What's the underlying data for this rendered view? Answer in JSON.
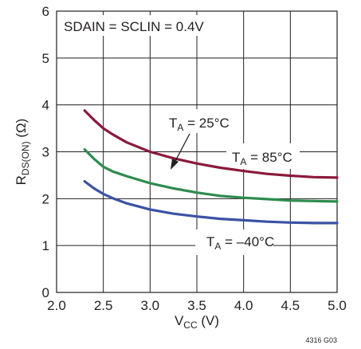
{
  "chart_data": {
    "type": "line",
    "xlabel": {
      "main": "V",
      "sub": "CC",
      "unit": " (V)"
    },
    "ylabel": {
      "main": "R",
      "sub": "DS(ON)",
      "unit": " (Ω)"
    },
    "xlim": [
      2.0,
      5.0
    ],
    "ylim": [
      0,
      6
    ],
    "x_ticks": [
      "2.0",
      "2.5",
      "3.0",
      "3.5",
      "4.0",
      "4.5",
      "5.0"
    ],
    "y_ticks": [
      "0",
      "1",
      "2",
      "3",
      "4",
      "5",
      "6"
    ],
    "grid": true,
    "condition_text": "SDAIN = SCLIN = 0.4V",
    "figure_id": "4316 G03",
    "colors": {
      "85C": "#8b1a3c",
      "25C": "#2e8b4e",
      "-40C": "#3a52a3",
      "grid": "#231f20"
    },
    "series": [
      {
        "key": "85C",
        "label_main": "T",
        "label_sub": "A",
        "label_rest": " = 85°C",
        "x": [
          2.3,
          2.4,
          2.5,
          2.6,
          2.75,
          3.0,
          3.25,
          3.5,
          3.75,
          4.0,
          4.25,
          4.5,
          4.75,
          5.0
        ],
        "values": [
          3.88,
          3.68,
          3.5,
          3.37,
          3.2,
          3.0,
          2.86,
          2.75,
          2.66,
          2.59,
          2.53,
          2.49,
          2.46,
          2.45
        ]
      },
      {
        "key": "25C",
        "label_main": "T",
        "label_sub": "A",
        "label_rest": " = 25°C",
        "x": [
          2.3,
          2.4,
          2.5,
          2.6,
          2.75,
          3.0,
          3.25,
          3.5,
          3.75,
          4.0,
          4.25,
          4.5,
          4.75,
          5.0
        ],
        "values": [
          3.05,
          2.85,
          2.68,
          2.58,
          2.48,
          2.33,
          2.22,
          2.13,
          2.06,
          2.02,
          1.99,
          1.96,
          1.95,
          1.94
        ]
      },
      {
        "key": "-40C",
        "label_main": "T",
        "label_sub": "A",
        "label_rest": " = –40°C",
        "x": [
          2.3,
          2.4,
          2.5,
          2.6,
          2.75,
          3.0,
          3.25,
          3.5,
          3.75,
          4.0,
          4.25,
          4.5,
          4.75,
          5.0
        ],
        "values": [
          2.37,
          2.22,
          2.1,
          2.01,
          1.9,
          1.77,
          1.68,
          1.62,
          1.57,
          1.54,
          1.51,
          1.49,
          1.48,
          1.48
        ]
      }
    ]
  }
}
